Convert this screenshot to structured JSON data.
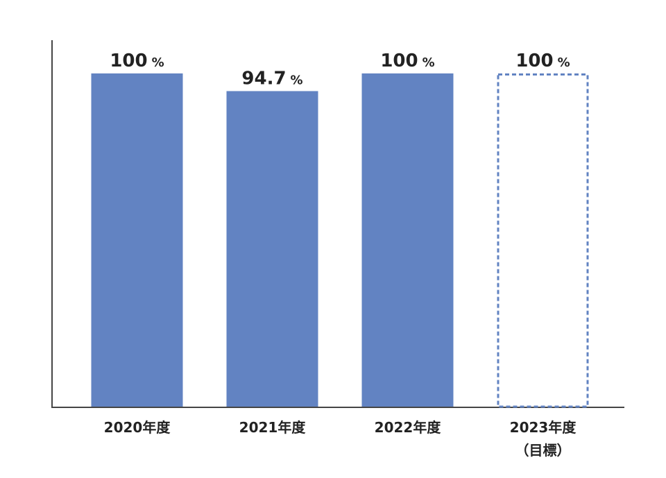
{
  "chart_data": {
    "type": "bar",
    "categories": [
      "2020年度",
      "2021年度",
      "2022年度",
      "2023年度"
    ],
    "sublabels": [
      null,
      null,
      null,
      "（目標）"
    ],
    "values": [
      100,
      94.7,
      100,
      100
    ],
    "unit": "%",
    "bar_styles": [
      "solid",
      "solid",
      "solid",
      "dashed"
    ],
    "color": "#6283c2",
    "ylim": [
      0,
      100
    ]
  }
}
